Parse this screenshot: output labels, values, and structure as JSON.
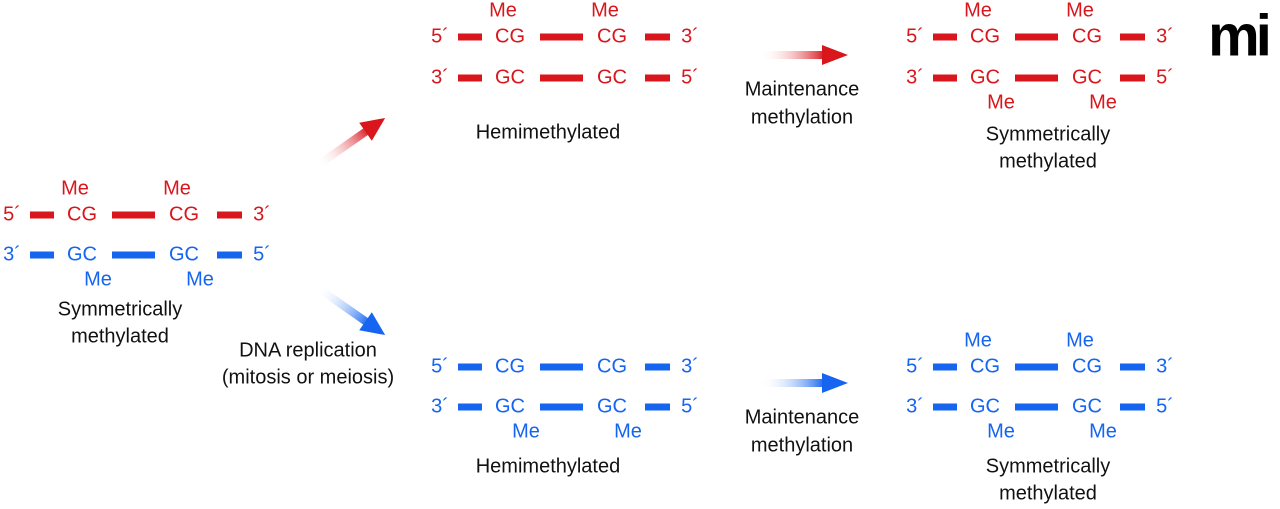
{
  "duplexes": [
    {
      "top": [
        "5´",
        "CG",
        "CG",
        "3´"
      ],
      "bottom": [
        "3´",
        "GC",
        "GC",
        "5´"
      ],
      "top_me": [
        "Me",
        "Me"
      ],
      "bottom_me": [
        "Me",
        "Me"
      ],
      "caption": [
        "Symmetrically",
        "methylated"
      ],
      "top_color": "#d9161c",
      "bottom_color": "#1565f0"
    },
    {
      "top": [
        "5´",
        "CG",
        "CG",
        "3´"
      ],
      "bottom": [
        "3´",
        "GC",
        "GC",
        "5´"
      ],
      "top_me": [
        "Me",
        "Me"
      ],
      "bottom_me": [],
      "caption": [
        "Hemimethylated"
      ],
      "top_color": "#d9161c",
      "bottom_color": "#d9161c"
    },
    {
      "top": [
        "5´",
        "CG",
        "CG",
        "3´"
      ],
      "bottom": [
        "3´",
        "GC",
        "GC",
        "5´"
      ],
      "top_me": [
        "Me",
        "Me"
      ],
      "bottom_me": [
        "Me",
        "Me"
      ],
      "caption": [
        "Symmetrically",
        "methylated"
      ],
      "top_color": "#d9161c",
      "bottom_color": "#d9161c"
    },
    {
      "top": [
        "5´",
        "CG",
        "CG",
        "3´"
      ],
      "bottom": [
        "3´",
        "GC",
        "GC",
        "5´"
      ],
      "top_me": [],
      "bottom_me": [
        "Me",
        "Me"
      ],
      "caption": [
        "Hemimethylated"
      ],
      "top_color": "#1565f0",
      "bottom_color": "#1565f0"
    },
    {
      "top": [
        "5´",
        "CG",
        "CG",
        "3´"
      ],
      "bottom": [
        "3´",
        "GC",
        "GC",
        "5´"
      ],
      "top_me": [
        "Me",
        "Me"
      ],
      "bottom_me": [
        "Me",
        "Me"
      ],
      "caption": [
        "Symmetrically",
        "methylated"
      ],
      "top_color": "#1565f0",
      "bottom_color": "#1565f0"
    }
  ],
  "replication_label": [
    "DNA replication",
    "(mitosis or meiosis)"
  ],
  "maintenance_labels": [
    [
      "Maintenance",
      "methylation"
    ],
    [
      "Maintenance",
      "methylation"
    ]
  ],
  "logo": "mi"
}
